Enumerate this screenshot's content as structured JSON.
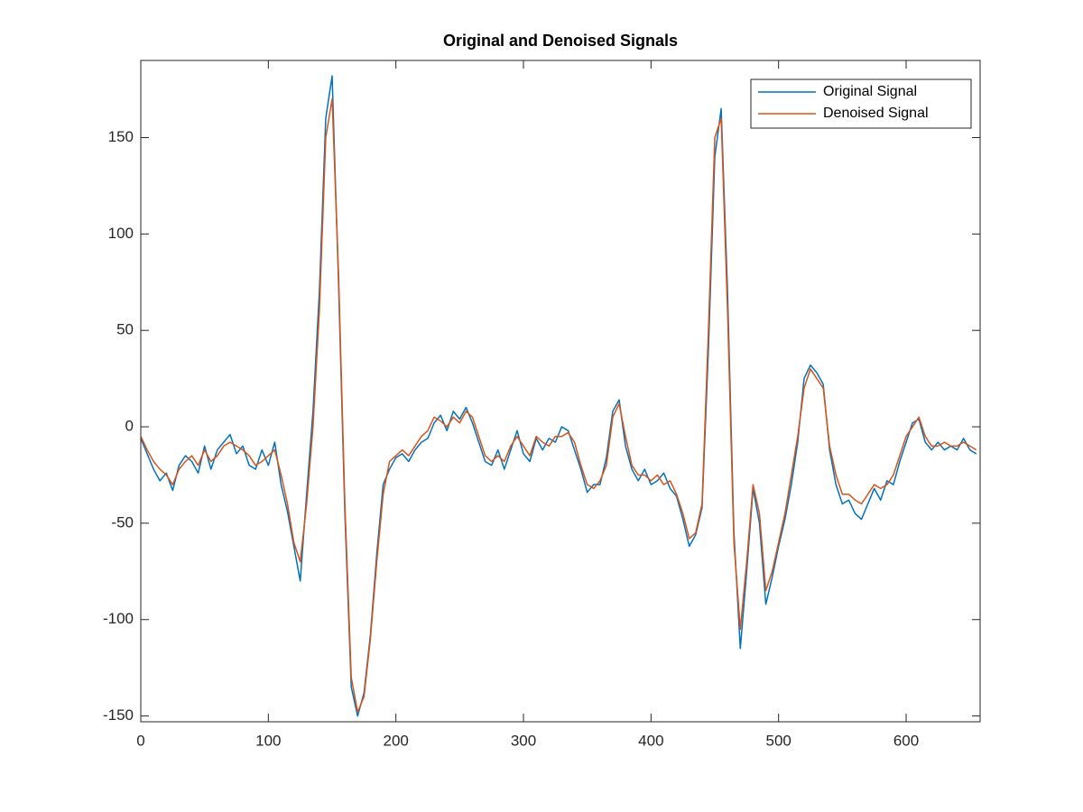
{
  "chart_data": {
    "type": "line",
    "title": "Original and Denoised Signals",
    "x": [
      0,
      5,
      10,
      15,
      20,
      25,
      30,
      35,
      40,
      45,
      50,
      55,
      60,
      65,
      70,
      75,
      80,
      85,
      90,
      95,
      100,
      105,
      110,
      115,
      120,
      125,
      130,
      135,
      140,
      145,
      150,
      155,
      160,
      165,
      170,
      175,
      180,
      185,
      190,
      195,
      200,
      205,
      210,
      215,
      220,
      225,
      230,
      235,
      240,
      245,
      250,
      255,
      260,
      265,
      270,
      275,
      280,
      285,
      290,
      295,
      300,
      305,
      310,
      315,
      320,
      325,
      330,
      335,
      340,
      345,
      350,
      355,
      360,
      365,
      370,
      375,
      380,
      385,
      390,
      395,
      400,
      405,
      410,
      415,
      420,
      425,
      430,
      435,
      440,
      445,
      450,
      455,
      460,
      465,
      470,
      475,
      480,
      485,
      490,
      495,
      500,
      505,
      510,
      515,
      520,
      525,
      530,
      535,
      540,
      545,
      550,
      555,
      560,
      565,
      570,
      575,
      580,
      585,
      590,
      595,
      600,
      605,
      610,
      615,
      620,
      625,
      630,
      635,
      640,
      645,
      650,
      655
    ],
    "series": [
      {
        "name": "Original Signal",
        "color": "#0072BD",
        "values": [
          -6,
          -14,
          -22,
          -28,
          -24,
          -33,
          -20,
          -15,
          -18,
          -24,
          -10,
          -22,
          -12,
          -8,
          -4,
          -14,
          -10,
          -20,
          -22,
          -12,
          -20,
          -8,
          -30,
          -44,
          -62,
          -80,
          -35,
          8,
          70,
          160,
          182,
          75,
          -45,
          -135,
          -150,
          -138,
          -108,
          -66,
          -30,
          -22,
          -16,
          -14,
          -18,
          -12,
          -8,
          -6,
          2,
          6,
          -2,
          8,
          4,
          10,
          2,
          -8,
          -18,
          -20,
          -12,
          -22,
          -12,
          -2,
          -14,
          -18,
          -6,
          -12,
          -6,
          -8,
          0,
          -2,
          -12,
          -22,
          -34,
          -30,
          -30,
          -16,
          8,
          14,
          -10,
          -22,
          -28,
          -22,
          -30,
          -28,
          -24,
          -32,
          -36,
          -48,
          -62,
          -56,
          -42,
          40,
          140,
          165,
          70,
          -55,
          -115,
          -75,
          -32,
          -50,
          -92,
          -78,
          -62,
          -48,
          -30,
          -8,
          25,
          32,
          28,
          22,
          -12,
          -30,
          -40,
          -38,
          -45,
          -48,
          -40,
          -32,
          -38,
          -28,
          -30,
          -18,
          -8,
          2,
          4,
          -8,
          -12,
          -8,
          -12,
          -10,
          -12,
          -6,
          -12,
          -14
        ]
      },
      {
        "name": "Denoised Signal",
        "color": "#D95319",
        "values": [
          -5,
          -12,
          -18,
          -22,
          -25,
          -30,
          -22,
          -18,
          -15,
          -20,
          -12,
          -18,
          -15,
          -10,
          -8,
          -10,
          -12,
          -15,
          -20,
          -18,
          -15,
          -12,
          -25,
          -40,
          -60,
          -70,
          -40,
          0,
          60,
          150,
          170,
          80,
          -40,
          -130,
          -148,
          -140,
          -110,
          -70,
          -35,
          -18,
          -15,
          -12,
          -15,
          -10,
          -5,
          -2,
          5,
          3,
          0,
          5,
          2,
          8,
          5,
          -5,
          -15,
          -18,
          -15,
          -18,
          -10,
          -5,
          -10,
          -15,
          -5,
          -8,
          -10,
          -5,
          -5,
          -3,
          -8,
          -20,
          -30,
          -32,
          -28,
          -20,
          5,
          12,
          -5,
          -20,
          -25,
          -25,
          -28,
          -25,
          -30,
          -28,
          -35,
          -45,
          -58,
          -55,
          -40,
          50,
          150,
          160,
          60,
          -60,
          -105,
          -70,
          -30,
          -45,
          -85,
          -75,
          -60,
          -45,
          -25,
          -5,
          20,
          30,
          25,
          20,
          -10,
          -25,
          -35,
          -35,
          -38,
          -40,
          -35,
          -30,
          -32,
          -30,
          -25,
          -15,
          -5,
          0,
          5,
          -5,
          -10,
          -10,
          -8,
          -10,
          -10,
          -8,
          -10,
          -12
        ]
      }
    ],
    "xlim": [
      0,
      658
    ],
    "ylim": [
      -153,
      190
    ],
    "xticks": [
      0,
      100,
      200,
      300,
      400,
      500,
      600
    ],
    "yticks": [
      -150,
      -100,
      -50,
      0,
      50,
      100,
      150
    ],
    "legend": "upper-right"
  }
}
